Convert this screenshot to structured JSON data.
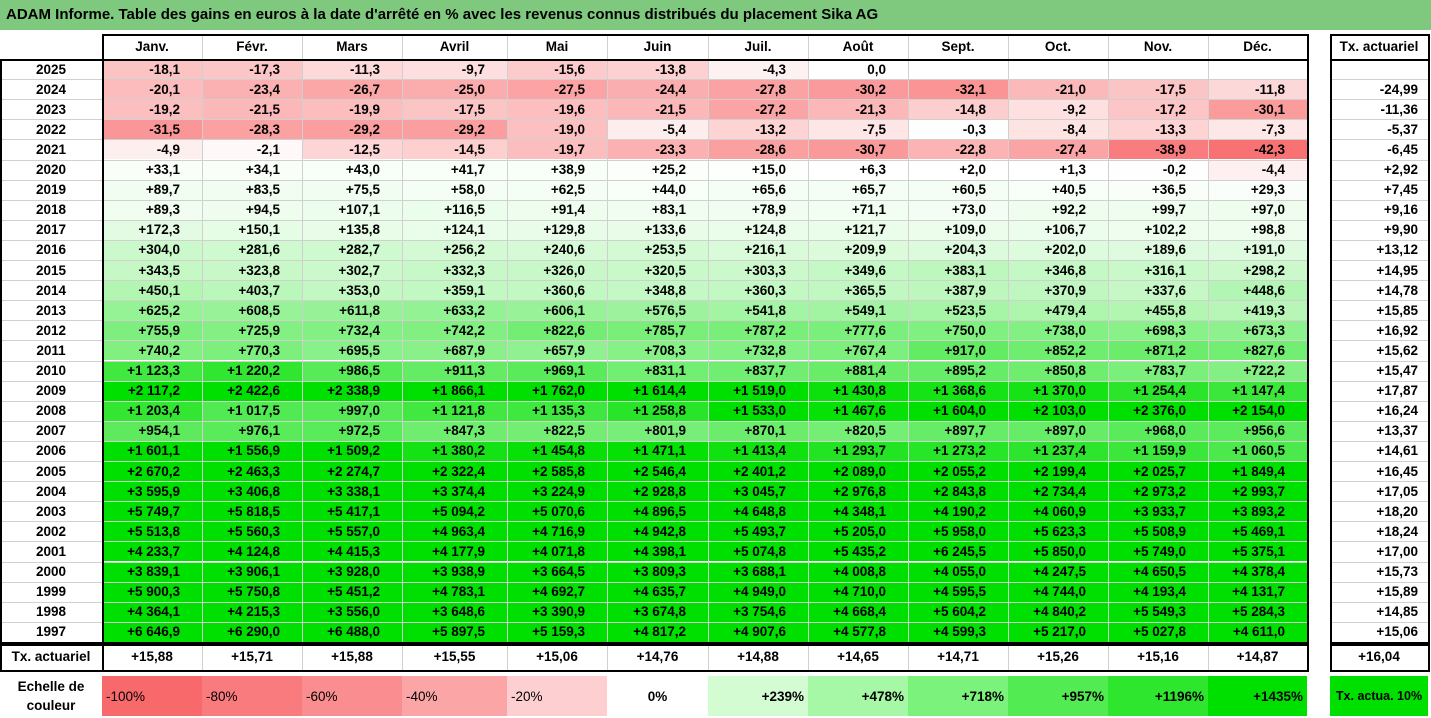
{
  "title": "ADAM Informe. Table des gains en euros à la date d'arrêté en % avec les revenus connus distribués du placement Sika AG",
  "months": [
    "Janv.",
    "Févr.",
    "Mars",
    "Avril",
    "Mai",
    "Juin",
    "Juil.",
    "Août",
    "Sept.",
    "Oct.",
    "Nov.",
    "Déc."
  ],
  "rate_header": "Tx. actuariel",
  "rows": [
    {
      "year": "2025",
      "values": [
        "-18,1",
        "-17,3",
        "-11,3",
        "-9,7",
        "-15,6",
        "-13,8",
        "-4,3",
        "0,0",
        "",
        "",
        "",
        ""
      ],
      "rate": ""
    },
    {
      "year": "2024",
      "values": [
        "-20,1",
        "-23,4",
        "-26,7",
        "-25,0",
        "-27,5",
        "-24,4",
        "-27,8",
        "-30,2",
        "-32,1",
        "-21,0",
        "-17,5",
        "-11,8"
      ],
      "rate": "-24,99"
    },
    {
      "year": "2023",
      "values": [
        "-19,2",
        "-21,5",
        "-19,9",
        "-17,5",
        "-19,6",
        "-21,5",
        "-27,2",
        "-21,3",
        "-14,8",
        "-9,2",
        "-17,2",
        "-30,1"
      ],
      "rate": "-11,36"
    },
    {
      "year": "2022",
      "values": [
        "-31,5",
        "-28,3",
        "-29,2",
        "-29,2",
        "-19,0",
        "-5,4",
        "-13,2",
        "-7,5",
        "-0,3",
        "-8,4",
        "-13,3",
        "-7,3"
      ],
      "rate": "-5,37"
    },
    {
      "year": "2021",
      "values": [
        "-4,9",
        "-2,1",
        "-12,5",
        "-14,5",
        "-19,7",
        "-23,3",
        "-28,6",
        "-30,7",
        "-22,8",
        "-27,4",
        "-38,9",
        "-42,3"
      ],
      "rate": "-6,45"
    },
    {
      "year": "2020",
      "values": [
        "+33,1",
        "+34,1",
        "+43,0",
        "+41,7",
        "+38,9",
        "+25,2",
        "+15,0",
        "+6,3",
        "+2,0",
        "+1,3",
        "-0,2",
        "-4,4"
      ],
      "rate": "+2,92"
    },
    {
      "year": "2019",
      "values": [
        "+89,7",
        "+83,5",
        "+75,5",
        "+58,0",
        "+62,5",
        "+44,0",
        "+65,6",
        "+65,7",
        "+60,5",
        "+40,5",
        "+36,5",
        "+29,3"
      ],
      "rate": "+7,45"
    },
    {
      "year": "2018",
      "values": [
        "+89,3",
        "+94,5",
        "+107,1",
        "+116,5",
        "+91,4",
        "+83,1",
        "+78,9",
        "+71,1",
        "+73,0",
        "+92,2",
        "+99,7",
        "+97,0"
      ],
      "rate": "+9,16"
    },
    {
      "year": "2017",
      "values": [
        "+172,3",
        "+150,1",
        "+135,8",
        "+124,1",
        "+129,8",
        "+133,6",
        "+124,8",
        "+121,7",
        "+109,0",
        "+106,7",
        "+102,2",
        "+98,8"
      ],
      "rate": "+9,90"
    },
    {
      "year": "2016",
      "values": [
        "+304,0",
        "+281,6",
        "+282,7",
        "+256,2",
        "+240,6",
        "+253,5",
        "+216,1",
        "+209,9",
        "+204,3",
        "+202,0",
        "+189,6",
        "+191,0"
      ],
      "rate": "+13,12"
    },
    {
      "year": "2015",
      "values": [
        "+343,5",
        "+323,8",
        "+302,7",
        "+332,3",
        "+326,0",
        "+320,5",
        "+303,3",
        "+349,6",
        "+383,1",
        "+346,8",
        "+316,1",
        "+298,2"
      ],
      "rate": "+14,95"
    },
    {
      "year": "2014",
      "values": [
        "+450,1",
        "+403,7",
        "+353,0",
        "+359,1",
        "+360,6",
        "+348,8",
        "+360,3",
        "+365,5",
        "+387,9",
        "+370,9",
        "+337,6",
        "+448,6"
      ],
      "rate": "+14,78"
    },
    {
      "year": "2013",
      "values": [
        "+625,2",
        "+608,5",
        "+611,8",
        "+633,2",
        "+606,1",
        "+576,5",
        "+541,8",
        "+549,1",
        "+523,5",
        "+479,4",
        "+455,8",
        "+419,3"
      ],
      "rate": "+15,85"
    },
    {
      "year": "2012",
      "values": [
        "+755,9",
        "+725,9",
        "+732,4",
        "+742,2",
        "+822,6",
        "+785,7",
        "+787,2",
        "+777,6",
        "+750,0",
        "+738,0",
        "+698,3",
        "+673,3"
      ],
      "rate": "+16,92"
    },
    {
      "year": "2011",
      "values": [
        "+740,2",
        "+770,3",
        "+695,5",
        "+687,9",
        "+657,9",
        "+708,3",
        "+732,8",
        "+767,4",
        "+917,0",
        "+852,2",
        "+871,2",
        "+827,6"
      ],
      "rate": "+15,62"
    },
    {
      "year": "2010",
      "values": [
        "+1 123,3",
        "+1 220,2",
        "+986,5",
        "+911,3",
        "+969,1",
        "+831,1",
        "+837,7",
        "+881,4",
        "+895,2",
        "+850,8",
        "+783,7",
        "+722,2"
      ],
      "rate": "+15,47"
    },
    {
      "year": "2009",
      "values": [
        "+2 117,2",
        "+2 422,6",
        "+2 338,9",
        "+1 866,1",
        "+1 762,0",
        "+1 614,4",
        "+1 519,0",
        "+1 430,8",
        "+1 368,6",
        "+1 370,0",
        "+1 254,4",
        "+1 147,4"
      ],
      "rate": "+17,87"
    },
    {
      "year": "2008",
      "values": [
        "+1 203,4",
        "+1 017,5",
        "+997,0",
        "+1 121,8",
        "+1 135,3",
        "+1 258,8",
        "+1 533,0",
        "+1 467,6",
        "+1 604,0",
        "+2 103,0",
        "+2 376,0",
        "+2 154,0"
      ],
      "rate": "+16,24"
    },
    {
      "year": "2007",
      "values": [
        "+954,1",
        "+976,1",
        "+972,5",
        "+847,3",
        "+822,5",
        "+801,9",
        "+870,1",
        "+820,5",
        "+897,7",
        "+897,0",
        "+968,0",
        "+956,6"
      ],
      "rate": "+13,37"
    },
    {
      "year": "2006",
      "values": [
        "+1 601,1",
        "+1 556,9",
        "+1 509,2",
        "+1 380,2",
        "+1 454,8",
        "+1 471,1",
        "+1 413,4",
        "+1 293,7",
        "+1 273,2",
        "+1 237,4",
        "+1 159,9",
        "+1 060,5"
      ],
      "rate": "+14,61"
    },
    {
      "year": "2005",
      "values": [
        "+2 670,2",
        "+2 463,3",
        "+2 274,7",
        "+2 322,4",
        "+2 585,8",
        "+2 546,4",
        "+2 401,2",
        "+2 089,0",
        "+2 055,2",
        "+2 199,4",
        "+2 025,7",
        "+1 849,4"
      ],
      "rate": "+16,45"
    },
    {
      "year": "2004",
      "values": [
        "+3 595,9",
        "+3 406,8",
        "+3 338,1",
        "+3 374,4",
        "+3 224,9",
        "+2 928,8",
        "+3 045,7",
        "+2 976,8",
        "+2 843,8",
        "+2 734,4",
        "+2 973,2",
        "+2 993,7"
      ],
      "rate": "+17,05"
    },
    {
      "year": "2003",
      "values": [
        "+5 749,7",
        "+5 818,5",
        "+5 417,1",
        "+5 094,2",
        "+5 070,6",
        "+4 896,5",
        "+4 648,8",
        "+4 348,1",
        "+4 190,2",
        "+4 060,9",
        "+3 933,7",
        "+3 893,2"
      ],
      "rate": "+18,20"
    },
    {
      "year": "2002",
      "values": [
        "+5 513,8",
        "+5 560,3",
        "+5 557,0",
        "+4 963,4",
        "+4 716,9",
        "+4 942,8",
        "+5 493,7",
        "+5 205,0",
        "+5 958,0",
        "+5 623,3",
        "+5 508,9",
        "+5 469,1"
      ],
      "rate": "+18,24"
    },
    {
      "year": "2001",
      "values": [
        "+4 233,7",
        "+4 124,8",
        "+4 415,3",
        "+4 177,9",
        "+4 071,8",
        "+4 398,1",
        "+5 074,8",
        "+5 435,2",
        "+6 245,5",
        "+5 850,0",
        "+5 749,0",
        "+5 375,1"
      ],
      "rate": "+17,00"
    },
    {
      "year": "2000",
      "values": [
        "+3 839,1",
        "+3 906,1",
        "+3 928,0",
        "+3 938,9",
        "+3 664,5",
        "+3 809,3",
        "+3 688,1",
        "+4 008,8",
        "+4 055,0",
        "+4 247,5",
        "+4 650,5",
        "+4 378,4"
      ],
      "rate": "+15,73"
    },
    {
      "year": "1999",
      "values": [
        "+5 900,3",
        "+5 750,8",
        "+5 451,2",
        "+4 783,1",
        "+4 692,7",
        "+4 635,7",
        "+4 949,0",
        "+4 710,0",
        "+4 595,5",
        "+4 744,0",
        "+4 193,4",
        "+4 131,7"
      ],
      "rate": "+15,89"
    },
    {
      "year": "1998",
      "values": [
        "+4 364,1",
        "+4 215,3",
        "+3 556,0",
        "+3 648,6",
        "+3 390,9",
        "+3 674,8",
        "+3 754,6",
        "+4 668,4",
        "+5 604,2",
        "+4 840,2",
        "+5 549,3",
        "+5 284,3"
      ],
      "rate": "+14,85"
    },
    {
      "year": "1997",
      "values": [
        "+6 646,9",
        "+6 290,0",
        "+6 488,0",
        "+5 897,5",
        "+5 159,3",
        "+4 817,2",
        "+4 907,6",
        "+4 577,8",
        "+4 599,3",
        "+5 217,0",
        "+5 027,8",
        "+4 611,0"
      ],
      "rate": "+15,06"
    }
  ],
  "footer": {
    "label": "Tx. actuariel",
    "values": [
      "+15,88",
      "+15,71",
      "+15,88",
      "+15,55",
      "+15,06",
      "+14,76",
      "+14,88",
      "+14,65",
      "+14,71",
      "+15,26",
      "+15,16",
      "+14,87"
    ],
    "total": "+16,04"
  },
  "legend": {
    "label": "Echelle de couleur",
    "items": [
      {
        "text": "-100%",
        "color": "#f8696b"
      },
      {
        "text": "-80%",
        "color": "#f97b7d"
      },
      {
        "text": "-60%",
        "color": "#fa8d8f"
      },
      {
        "text": "-40%",
        "color": "#fca5a6"
      },
      {
        "text": "-20%",
        "color": "#fdcfd0"
      },
      {
        "text": "0%",
        "color": "#ffffff"
      },
      {
        "text": "+239%",
        "color": "#d3fcd3"
      },
      {
        "text": "+478%",
        "color": "#a6f7a6"
      },
      {
        "text": "+718%",
        "color": "#7bf27b"
      },
      {
        "text": "+957%",
        "color": "#52eb52"
      },
      {
        "text": "+1196%",
        "color": "#2fe62f"
      },
      {
        "text": "+1435%",
        "color": "#00e000"
      }
    ],
    "target": "Tx. actua. 10%",
    "target_color": "#00e000"
  }
}
